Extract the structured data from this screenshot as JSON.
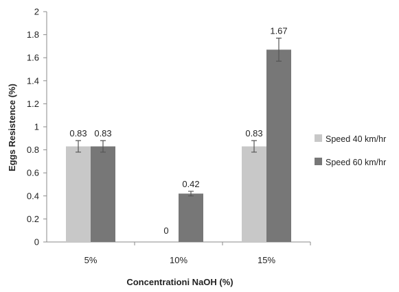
{
  "chart_data": {
    "type": "bar",
    "title": "",
    "xlabel": "Concentrationi NaOH (%)",
    "ylabel": "Eggs Resistence (%)",
    "ylim": [
      0,
      2
    ],
    "yticks": [
      "0",
      "0.2",
      "0.4",
      "0.6",
      "0.8",
      "1",
      "1.2",
      "1.4",
      "1.6",
      "1.8",
      "2"
    ],
    "categories": [
      "5%",
      "10%",
      "15%"
    ],
    "grid": false,
    "legend_position": "right",
    "series": [
      {
        "name": "Speed 40 km/hr",
        "color": "#c8c8c8",
        "values": [
          0.83,
          0,
          0.83
        ],
        "labels": [
          "0.83",
          "0",
          "0.83"
        ],
        "errors": [
          0.05,
          0,
          0.05
        ]
      },
      {
        "name": "Speed 60 km/hr",
        "color": "#777777",
        "values": [
          0.83,
          0.42,
          1.67
        ],
        "labels": [
          "0.83",
          "0.42",
          "1.67"
        ],
        "errors": [
          0.05,
          0.02,
          0.1
        ]
      }
    ]
  }
}
